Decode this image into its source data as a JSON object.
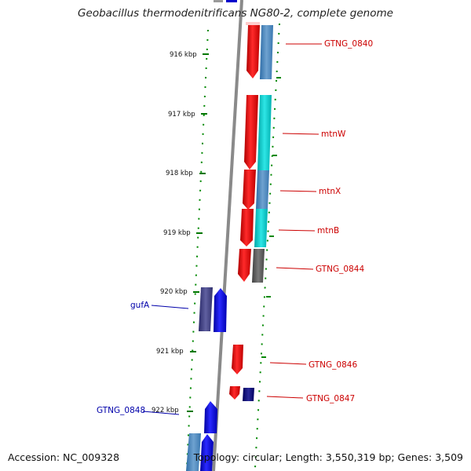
{
  "title": "Geobacillus thermodenitrificans NG80-2, complete genome",
  "accession": "Accession: NC_009328",
  "summary": "Topology: circular; Length: 3,550,319 bp; Genes: 3,509",
  "colors": {
    "forward_gene": "#ff0000",
    "reverse_gene": "#0000ff",
    "forward_label": "#cc0000",
    "reverse_label": "#0000aa",
    "kbp_tick": "#008800",
    "backbone": "#888888"
  },
  "kbp_ticks": [
    "916 kbp",
    "917 kbp",
    "918 kbp",
    "919 kbp",
    "920 kbp",
    "921 kbp",
    "922 kbp"
  ],
  "gene_labels": {
    "gtng_0840": "GTNG_0840",
    "mtnW": "mtnW",
    "mtnX": "mtnX",
    "mtnB": "mtnB",
    "gtng_0844": "GTNG_0844",
    "gufA": "gufA",
    "gtng_0846": "GTNG_0846",
    "gtng_0847": "GTNG_0847",
    "gtng_0848": "GTNG_0848"
  }
}
